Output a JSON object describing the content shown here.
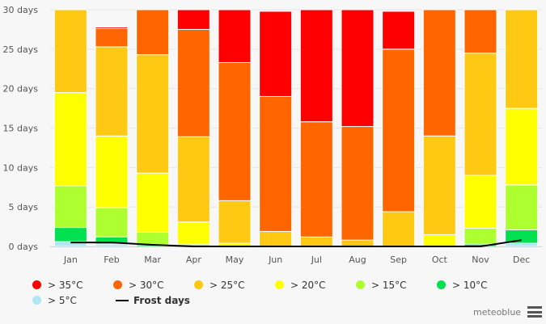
{
  "chart_data": {
    "type": "bar",
    "stacked": true,
    "title": "",
    "xlabel": "",
    "ylabel": "",
    "ylim": [
      0,
      30
    ],
    "yticks": [
      0,
      5,
      10,
      15,
      20,
      25,
      30
    ],
    "ytick_suffix": " days",
    "grid": true,
    "categories": [
      "Jan",
      "Feb",
      "Mar",
      "Apr",
      "May",
      "Jun",
      "Jul",
      "Aug",
      "Sep",
      "Oct",
      "Nov",
      "Dec"
    ],
    "series": [
      {
        "name": "> 5°C",
        "color": "#aee6f5",
        "values": [
          0.6,
          0.3,
          0,
          0,
          0,
          0,
          0,
          0,
          0,
          0,
          0,
          0.4
        ]
      },
      {
        "name": "> 10°C",
        "color": "#00e050",
        "values": [
          1.8,
          0.9,
          0.2,
          0,
          0,
          0,
          0,
          0,
          0,
          0,
          0.3,
          1.7
        ]
      },
      {
        "name": "> 15°C",
        "color": "#adff2f",
        "values": [
          5.3,
          3.7,
          1.6,
          0.3,
          0,
          0,
          0,
          0,
          0,
          0,
          2.0,
          5.7
        ]
      },
      {
        "name": "> 20°C",
        "color": "#ffff00",
        "values": [
          11.8,
          9.1,
          7.5,
          2.8,
          0.4,
          0,
          0,
          0,
          0,
          1.5,
          6.7,
          9.7
        ]
      },
      {
        "name": "> 25°C",
        "color": "#ffc812",
        "values": [
          10.5,
          11.3,
          15.0,
          10.8,
          5.4,
          1.9,
          1.2,
          0.8,
          4.4,
          12.5,
          15.5,
          12.5
        ]
      },
      {
        "name": "> 30°C",
        "color": "#ff6600",
        "values": [
          0,
          2.3,
          5.7,
          13.6,
          17.5,
          17.1,
          14.6,
          14.4,
          20.6,
          17.0,
          5.5,
          0
        ]
      },
      {
        "name": "> 35°C",
        "color": "#ff0000",
        "values": [
          0,
          0.2,
          0,
          2.5,
          6.7,
          10.8,
          15.2,
          15.8,
          4.8,
          0,
          0,
          0
        ]
      }
    ],
    "line_series": {
      "name": "Frost days",
      "color": "#000000",
      "values": [
        0.5,
        0.5,
        0.2,
        0,
        0,
        0,
        0,
        0,
        0,
        0,
        0,
        0.8
      ]
    },
    "legend_position": "bottom"
  },
  "legend": {
    "items": [
      {
        "label": "> 35°C",
        "color": "#ff0000"
      },
      {
        "label": "> 30°C",
        "color": "#ff6600"
      },
      {
        "label": "> 25°C",
        "color": "#ffc812"
      },
      {
        "label": "> 20°C",
        "color": "#ffff00"
      },
      {
        "label": "> 15°C",
        "color": "#adff2f"
      },
      {
        "label": "> 10°C",
        "color": "#00e050"
      },
      {
        "label": "> 5°C",
        "color": "#aee6f5"
      }
    ],
    "frost_label": "Frost days"
  },
  "credit": "meteoblue"
}
